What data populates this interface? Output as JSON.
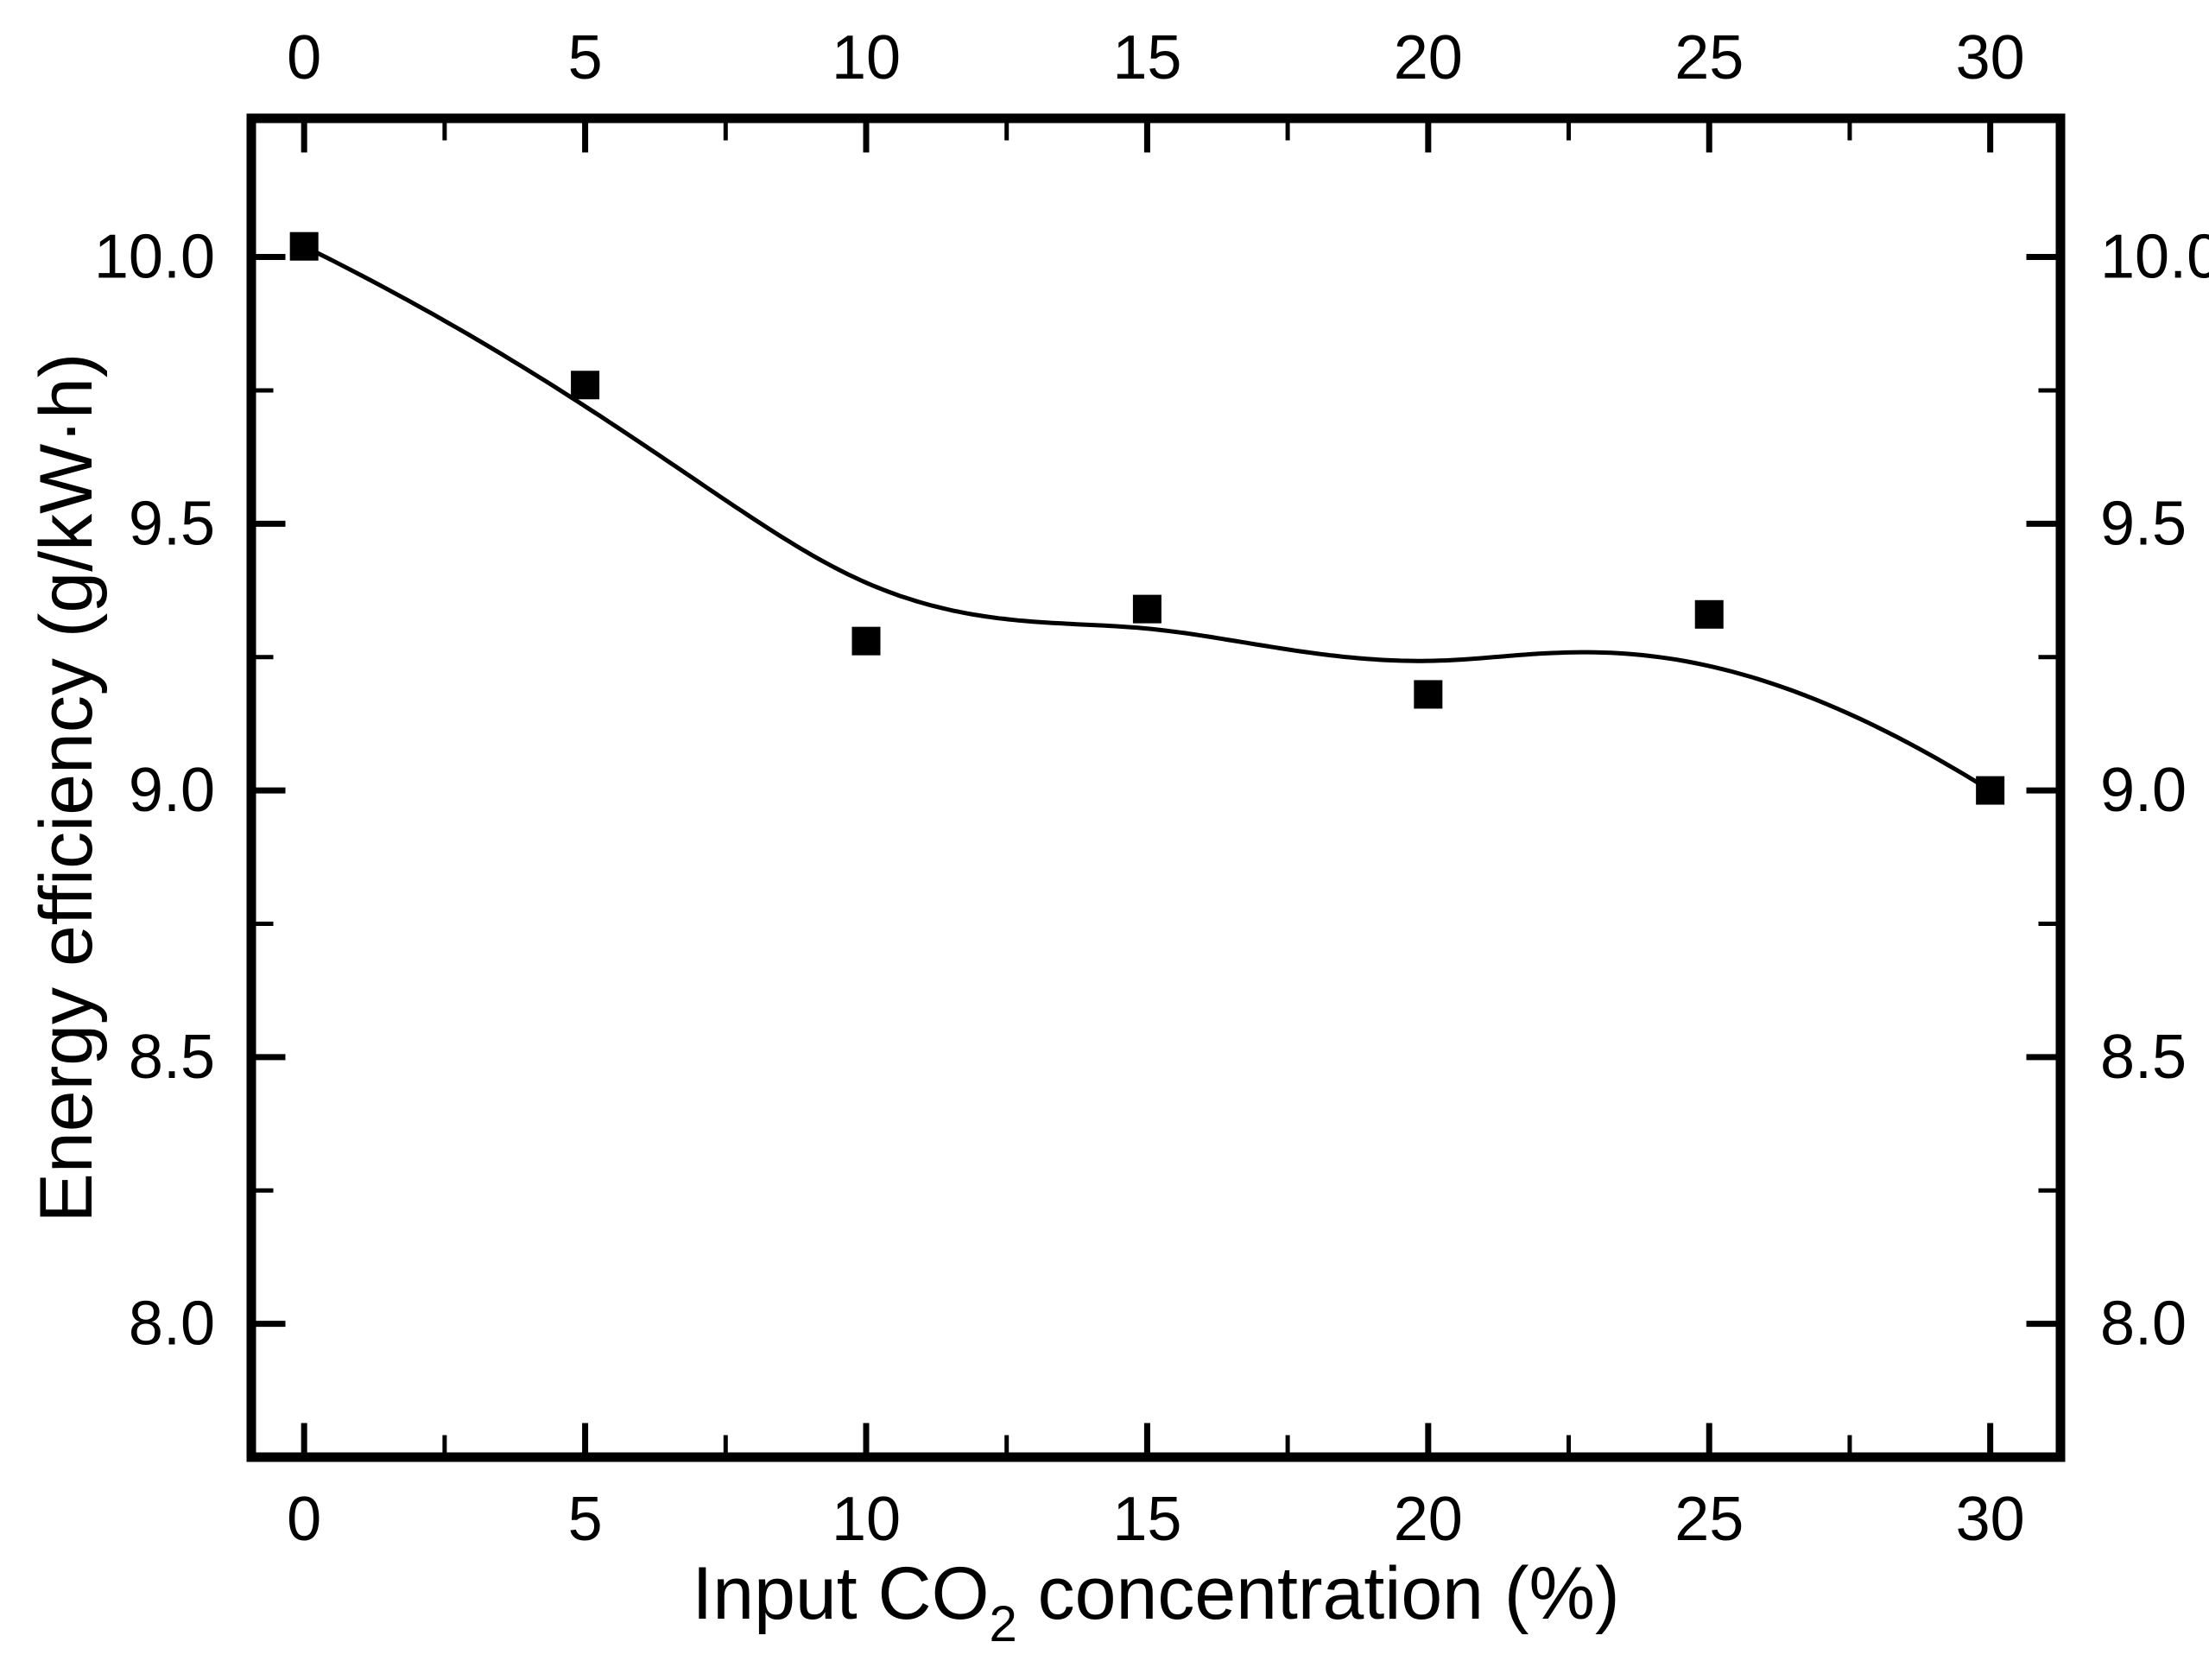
{
  "page": {
    "background": "#ffffff"
  },
  "chart_data": {
    "type": "scatter",
    "title": "",
    "xlabel_parts": {
      "prefix": "Input CO",
      "sub": "2",
      "suffix": " concentration (%)"
    },
    "ylabel": "Energy efficiency (g/kW·h)",
    "x": [
      0,
      5,
      10,
      15,
      20,
      25,
      30
    ],
    "y": [
      10.02,
      9.76,
      9.28,
      9.34,
      9.18,
      9.33,
      9.0
    ],
    "series": [
      {
        "name": "energy-efficiency",
        "marker": "filled-square",
        "marker_color": "#000000",
        "line": "b-spline-smooth",
        "line_color": "#000000"
      }
    ],
    "xlim": [
      -0.94,
      31.25
    ],
    "ylim": [
      7.75,
      10.26
    ],
    "x_ticks": [
      0,
      5,
      10,
      15,
      20,
      25,
      30
    ],
    "x_tick_labels": [
      "0",
      "5",
      "10",
      "15",
      "20",
      "25",
      "30"
    ],
    "x_minor_ticks": [
      2.5,
      7.5,
      12.5,
      17.5,
      22.5,
      27.5
    ],
    "y_ticks": [
      10.0,
      9.5,
      9.0,
      8.5,
      8.0
    ],
    "y_tick_labels": [
      "10.0",
      "9.5",
      "9.0",
      "8.5",
      "8.0"
    ],
    "y_minor_ticks": [
      9.75,
      9.25,
      8.75,
      8.25
    ],
    "axes": {
      "frame": true,
      "tick_direction": "in",
      "mirror_tick_labels": true,
      "grid": false
    },
    "legend": {
      "visible": false
    },
    "colors": {
      "ink": "#000000",
      "background": "#ffffff"
    }
  }
}
